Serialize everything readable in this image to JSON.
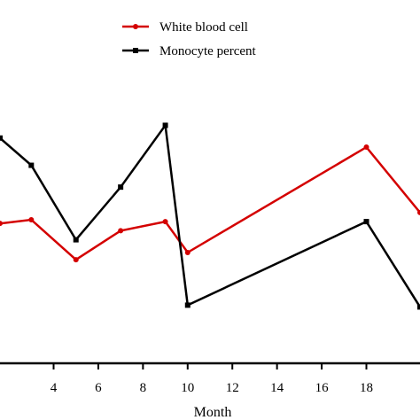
{
  "chart_data": {
    "type": "line",
    "xlabel": "Month",
    "ylabel": "",
    "xlim": [
      1.6,
      20.4
    ],
    "ylim": [
      0,
      100
    ],
    "grid": false,
    "legend_position": "top-center",
    "x_ticks": [
      4,
      6,
      8,
      10,
      12,
      14,
      16,
      18
    ],
    "x_tick_labels": [
      "4",
      "6",
      "8",
      "10",
      "12",
      "14",
      "16",
      "18"
    ],
    "series": [
      {
        "name": "White blood cell",
        "color": "#d40000",
        "marker": "circle",
        "x": [
          1.6,
          3,
          5,
          7,
          9,
          10,
          18,
          20.4
        ],
        "y": [
          38.5,
          39.5,
          28.5,
          36.5,
          39.0,
          30.5,
          59.5,
          41.5
        ]
      },
      {
        "name": "Monocyte percent",
        "color": "#000000",
        "marker": "square",
        "x": [
          1.6,
          3,
          5,
          7,
          9,
          10,
          18,
          20.4
        ],
        "y": [
          62.0,
          54.5,
          34.0,
          48.5,
          65.5,
          16.0,
          39.0,
          15.5
        ]
      }
    ]
  }
}
